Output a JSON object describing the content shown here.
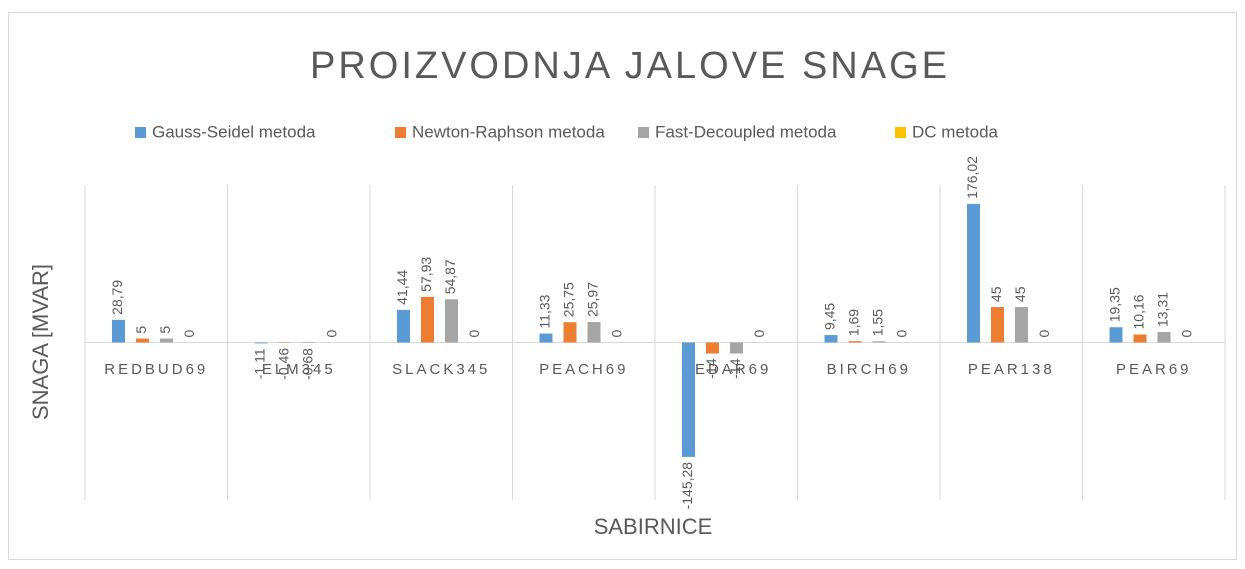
{
  "chart_data": {
    "type": "bar",
    "title": "PROIZVODNJA JALOVE SNAGE",
    "x_label": "SABIRNICE",
    "y_label": "SNAGA [MVAR]",
    "categories": [
      "REDBUD69",
      "ELM345",
      "SLACK345",
      "PEACH69",
      "CEDAR69",
      "BIRCH69",
      "PEAR138",
      "PEAR69"
    ],
    "series": [
      {
        "name": "Gauss-Seidel metoda",
        "color": "#5b9bd5",
        "values": [
          28.79,
          -1.11,
          41.44,
          11.33,
          -145.28,
          9.45,
          176.02,
          19.35
        ],
        "value_labels": [
          "28,79",
          "-1,11",
          "41,44",
          "11,33",
          "-145,28",
          "9,45",
          "176,02",
          "19,35"
        ]
      },
      {
        "name": "Newton-Raphson metoda",
        "color": "#ed7d31",
        "values": [
          5,
          -0.46,
          57.93,
          25.75,
          -14,
          1.69,
          45,
          10.16
        ],
        "value_labels": [
          "5",
          "-0,46",
          "57,93",
          "25,75",
          "-14",
          "1,69",
          "45",
          "10,16"
        ]
      },
      {
        "name": "Fast-Decoupled metoda",
        "color": "#a5a5a5",
        "values": [
          5,
          -0.68,
          54.87,
          25.97,
          -14,
          1.55,
          45,
          13.31
        ],
        "value_labels": [
          "5",
          "-0,68",
          "54,87",
          "25,97",
          "-14",
          "1,55",
          "45",
          "13,31"
        ]
      },
      {
        "name": "DC metoda",
        "color": "#ffc000",
        "values": [
          0,
          0,
          0,
          0,
          0,
          0,
          0,
          0
        ],
        "value_labels": [
          "0",
          "0",
          "0",
          "0",
          "0",
          "0",
          "0",
          "0"
        ]
      }
    ],
    "ylim": [
      -200,
      200
    ],
    "legend": "top"
  }
}
